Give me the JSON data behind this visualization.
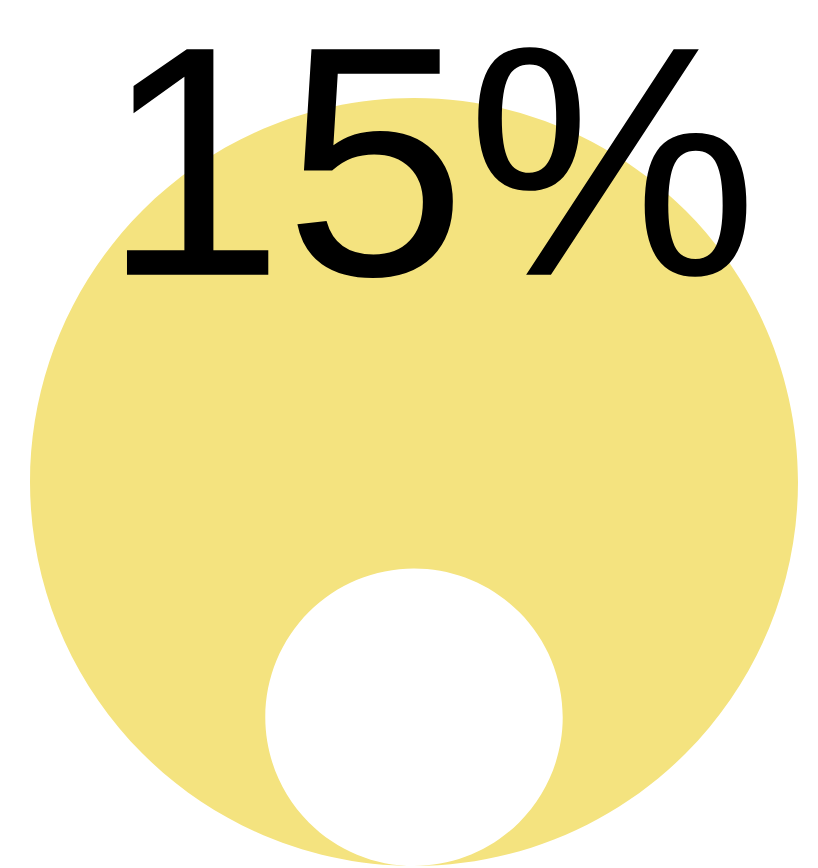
{
  "chart_data": {
    "type": "other",
    "values": [
      15
    ],
    "value_labels": [
      "15%"
    ],
    "colors": [
      "#f4e37f"
    ]
  }
}
